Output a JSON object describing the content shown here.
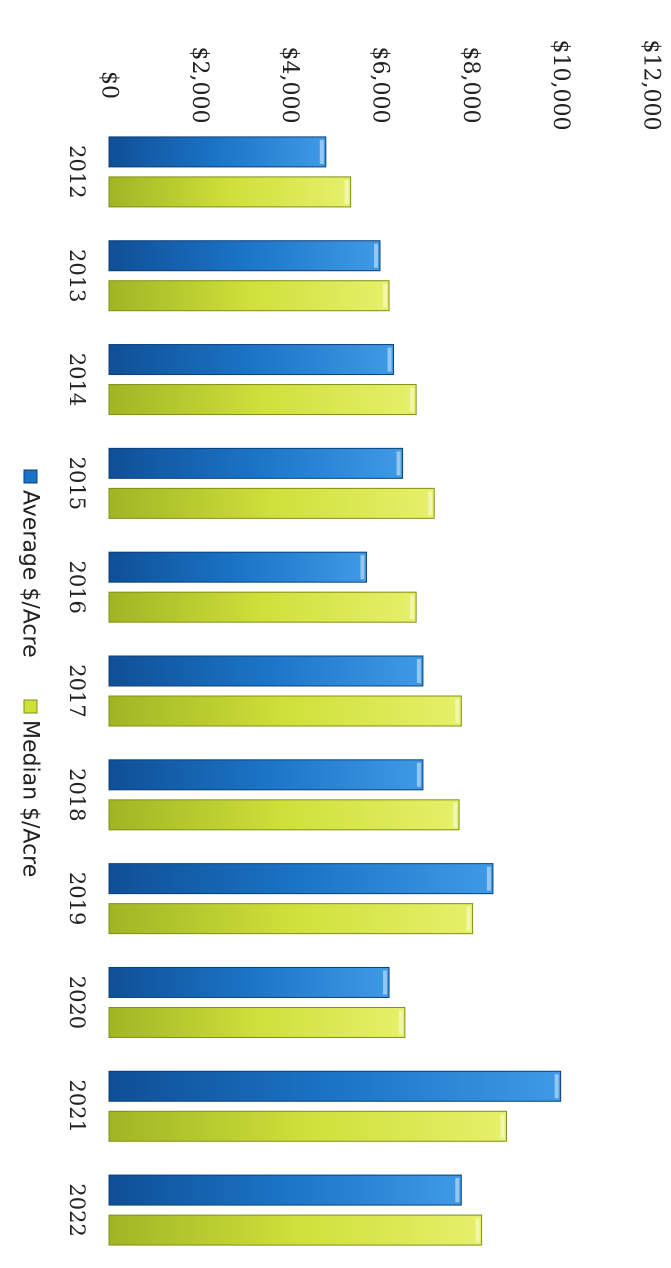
{
  "chart_data": {
    "type": "bar",
    "title": "",
    "xlabel": "",
    "ylabel": "",
    "categories": [
      "2012",
      "2013",
      "2014",
      "2015",
      "2016",
      "2017",
      "2018",
      "2019",
      "2020",
      "2021",
      "2022"
    ],
    "series": [
      {
        "name": "Average $/Acre",
        "color": "#1a73c4",
        "values": [
          4800,
          6000,
          6300,
          6500,
          5700,
          6950,
          6950,
          8500,
          6200,
          10000,
          7800
        ]
      },
      {
        "name": "Median $/Acre",
        "color": "#cfe03a",
        "values": [
          5350,
          6200,
          6800,
          7200,
          6800,
          7800,
          7750,
          8050,
          6550,
          8800,
          8250
        ]
      }
    ],
    "ylim": [
      0,
      12000
    ],
    "yticks": [
      "$0",
      "$2,000",
      "$4,000",
      "$6,000",
      "$8,000",
      "$10,000",
      "$12,000"
    ],
    "grid": false,
    "legend": "bottom"
  }
}
